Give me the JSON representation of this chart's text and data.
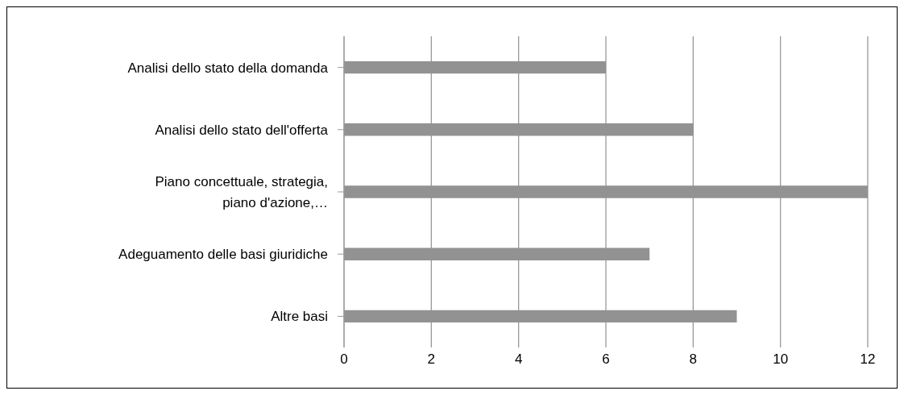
{
  "chart_data": {
    "type": "bar",
    "orientation": "horizontal",
    "categories": [
      "Analisi dello stato della domanda",
      "Analisi dello stato dell'offerta",
      "Piano concettuale, strategia, piano d'azione,…",
      "Adeguamento delle basi giuridiche",
      "Altre basi"
    ],
    "values": [
      6,
      8,
      12,
      7,
      9
    ],
    "color": "#929292",
    "xlim": [
      0,
      12
    ],
    "xticks": [
      0,
      2,
      4,
      6,
      8,
      10,
      12
    ],
    "grid": "x"
  }
}
